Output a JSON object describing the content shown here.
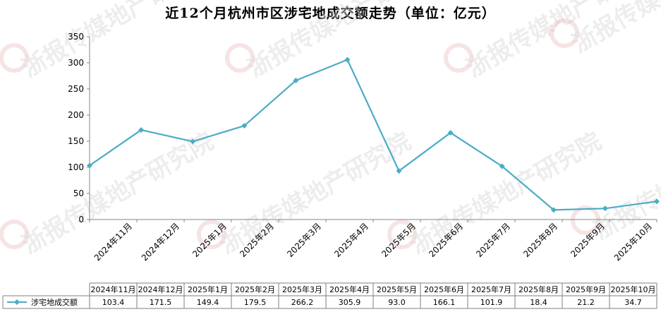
{
  "chart_data": {
    "type": "line",
    "title": "近12个月杭州市区涉宅地成交额走势（单位：亿元）",
    "categories": [
      "2024年11月",
      "2024年12月",
      "2025年1月",
      "2025年2月",
      "2025年3月",
      "2025年4月",
      "2025年5月",
      "2025年6月",
      "2025年7月",
      "2025年8月",
      "2025年9月",
      "2025年10月"
    ],
    "series": [
      {
        "name": "涉宅地成交额",
        "values": [
          103.4,
          171.5,
          149.4,
          179.5,
          266.2,
          305.9,
          93.0,
          166.1,
          101.9,
          18.4,
          21.2,
          34.7
        ]
      }
    ],
    "table_values": [
      "103.4",
      "171.5",
      "149.4",
      "179.5",
      "266.2",
      "305.9",
      "93.0",
      "166.1",
      "101.9",
      "18.4",
      "21.2",
      "34.7"
    ],
    "yticks": [
      "0",
      "50",
      "100",
      "150",
      "200",
      "250",
      "300",
      "350"
    ],
    "ylim": [
      0,
      350
    ],
    "grid": false,
    "legend": "data-table-left",
    "series_color": "#4bacc6",
    "watermark_text": "浙报传媒地产研究院"
  }
}
